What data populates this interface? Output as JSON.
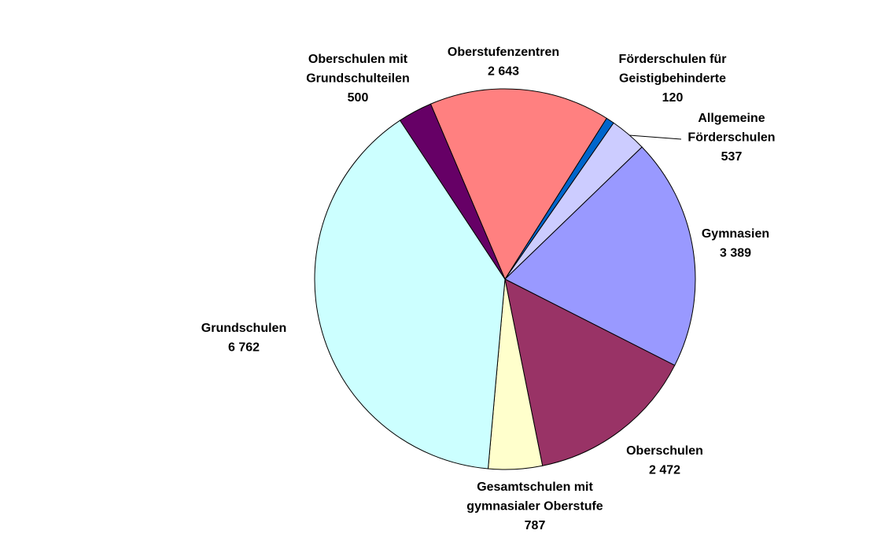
{
  "chart_data": {
    "type": "pie",
    "categories": [
      [
        "Oberstufenzentren"
      ],
      [
        "Förderschulen für",
        "Geistigbehinderte"
      ],
      [
        "Allgemeine",
        "Förderschulen"
      ],
      [
        "Gymnasien"
      ],
      [
        "Oberschulen"
      ],
      [
        "Gesamtschulen mit",
        "gymnasialer Oberstufe"
      ],
      [
        "Grundschulen"
      ],
      [
        "Oberschulen mit",
        "Grundschulteilen"
      ]
    ],
    "values": [
      2643,
      120,
      537,
      3389,
      2472,
      787,
      6762,
      500
    ],
    "value_labels": [
      "2 643",
      "120",
      "537",
      "3 389",
      "2 472",
      "787",
      "6 762",
      "500"
    ],
    "colors": [
      "#ff8080",
      "#0066cc",
      "#ccccff",
      "#9999ff",
      "#993366",
      "#ffffcc",
      "#ccffff",
      "#660066"
    ],
    "start_angle": -23
  }
}
